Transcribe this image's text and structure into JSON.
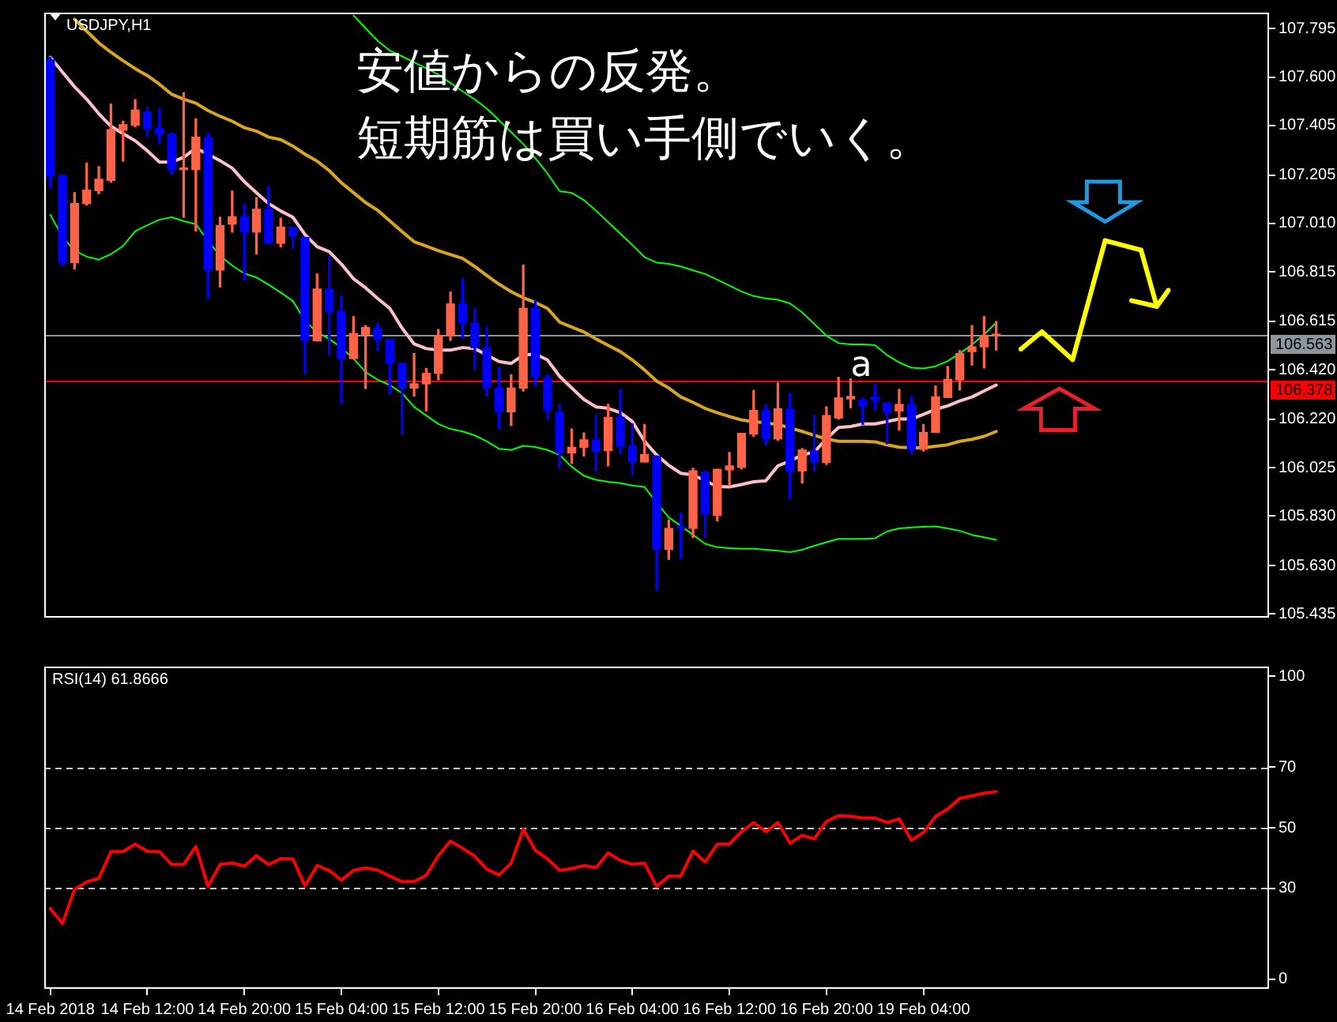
{
  "chart_data": [
    {
      "type": "candlestick",
      "title": "USDJPY,H1",
      "categories": [
        null,
        null,
        null,
        null,
        null,
        null,
        null,
        null,
        null,
        null,
        null,
        null,
        null,
        null,
        null,
        null,
        null,
        null,
        null,
        null,
        null,
        null,
        null,
        null,
        null,
        null,
        null,
        null,
        null,
        null,
        null,
        null,
        null,
        null,
        null,
        null,
        null,
        null,
        null,
        null,
        null,
        null,
        null,
        null,
        null,
        null,
        null,
        null,
        null,
        null,
        null,
        null,
        null,
        null,
        null,
        null,
        null,
        null,
        null,
        null,
        null,
        null,
        null,
        null,
        null,
        null,
        null,
        null,
        null,
        null,
        null,
        null,
        null,
        null,
        null,
        null,
        null,
        null,
        null
      ],
      "ohlc": [
        [
          107.67,
          107.68,
          107.154,
          107.203
        ],
        [
          107.203,
          107.203,
          106.84,
          106.852
        ],
        [
          106.852,
          107.134,
          106.826,
          107.09
        ],
        [
          107.09,
          107.253,
          107.084,
          107.144
        ],
        [
          107.142,
          107.239,
          107.13,
          107.188
        ],
        [
          107.184,
          107.491,
          107.176,
          107.388
        ],
        [
          107.386,
          107.422,
          107.261,
          107.408
        ],
        [
          107.406,
          107.509,
          107.4,
          107.467
        ],
        [
          107.46,
          107.479,
          107.362,
          107.392
        ],
        [
          107.394,
          107.473,
          107.332,
          107.37
        ],
        [
          107.37,
          107.376,
          107.207,
          107.227
        ],
        [
          107.227,
          107.537,
          107.035,
          107.227
        ],
        [
          107.227,
          107.432,
          106.979,
          107.358
        ],
        [
          107.358,
          107.376,
          106.707,
          106.822
        ],
        [
          106.822,
          107.035,
          106.753,
          107.001
        ],
        [
          107.007,
          107.14,
          106.975,
          107.037
        ],
        [
          107.037,
          107.086,
          106.781,
          106.975
        ],
        [
          106.975,
          107.114,
          106.886,
          107.067
        ],
        [
          107.067,
          107.158,
          106.93,
          106.93
        ],
        [
          106.93,
          107.031,
          106.916,
          106.995
        ],
        [
          106.995,
          106.995,
          106.91,
          106.959
        ],
        [
          106.953,
          106.953,
          106.403,
          106.536
        ],
        [
          106.536,
          106.806,
          106.536,
          106.745
        ],
        [
          106.745,
          106.876,
          106.479,
          106.655
        ],
        [
          106.655,
          106.717,
          106.284,
          106.465
        ],
        [
          106.465,
          106.634,
          106.465,
          106.566
        ],
        [
          106.56,
          106.598,
          106.344,
          106.59
        ],
        [
          106.588,
          106.608,
          106.497,
          106.542
        ],
        [
          106.542,
          106.542,
          106.32,
          106.447
        ],
        [
          106.447,
          106.447,
          106.159,
          106.346
        ],
        [
          106.346,
          106.485,
          106.314,
          106.363
        ],
        [
          106.363,
          106.425,
          106.254,
          106.405
        ],
        [
          106.405,
          106.582,
          106.379,
          106.558
        ],
        [
          106.558,
          106.733,
          106.538,
          106.685
        ],
        [
          106.685,
          106.786,
          106.548,
          106.608
        ],
        [
          106.608,
          106.667,
          106.421,
          106.509
        ],
        [
          106.507,
          106.59,
          106.314,
          106.346
        ],
        [
          106.346,
          106.429,
          106.183,
          106.25
        ],
        [
          106.25,
          106.399,
          106.195,
          106.346
        ],
        [
          106.346,
          106.842,
          106.334,
          106.667
        ],
        [
          106.667,
          106.697,
          106.356,
          106.393
        ],
        [
          106.387,
          106.399,
          106.221,
          106.256
        ],
        [
          106.25,
          106.282,
          106.022,
          106.084
        ],
        [
          106.084,
          106.181,
          106.042,
          106.107
        ],
        [
          106.107,
          106.165,
          106.072,
          106.137
        ],
        [
          106.137,
          106.239,
          106.012,
          106.09
        ],
        [
          106.094,
          106.28,
          106.032,
          106.227
        ],
        [
          106.227,
          106.342,
          106.082,
          106.111
        ],
        [
          106.113,
          106.201,
          105.998,
          106.048
        ],
        [
          106.048,
          106.199,
          106.048,
          106.078
        ],
        [
          106.072,
          106.072,
          105.532,
          105.695
        ],
        [
          105.695,
          105.814,
          105.655,
          105.78
        ],
        [
          105.784,
          105.843,
          105.659,
          105.78
        ],
        [
          105.78,
          106.022,
          105.744,
          106.012
        ],
        [
          106.006,
          106.01,
          105.744,
          105.839
        ],
        [
          105.833,
          106.018,
          105.81,
          106.018
        ],
        [
          106.016,
          106.086,
          105.953,
          106.032
        ],
        [
          106.026,
          106.163,
          106.02,
          106.163
        ],
        [
          106.161,
          106.336,
          106.151,
          106.256
        ],
        [
          106.256,
          106.28,
          106.117,
          106.141
        ],
        [
          106.141,
          106.366,
          106.135,
          106.262
        ],
        [
          106.262,
          106.324,
          105.903,
          106.012
        ],
        [
          106.012,
          106.102,
          105.963,
          106.096
        ],
        [
          106.092,
          106.236,
          106.012,
          106.048
        ],
        [
          106.046,
          106.27,
          106.038,
          106.235
        ],
        [
          106.225,
          106.389,
          106.221,
          106.306
        ],
        [
          106.302,
          106.383,
          106.266,
          106.312
        ],
        [
          106.298,
          106.306,
          106.199,
          106.274
        ],
        [
          106.31,
          106.36,
          106.258,
          106.298
        ],
        [
          106.286,
          106.286,
          106.121,
          106.248
        ],
        [
          106.254,
          106.34,
          106.177,
          106.28
        ],
        [
          106.28,
          106.31,
          106.082,
          106.099
        ],
        [
          106.099,
          106.199,
          106.092,
          106.167
        ],
        [
          106.167,
          106.354,
          106.167,
          106.31
        ],
        [
          106.308,
          106.433,
          106.308,
          106.381
        ],
        [
          106.379,
          106.497,
          106.338,
          106.485
        ],
        [
          106.493,
          106.598,
          106.439,
          106.512
        ],
        [
          106.512,
          106.634,
          106.427,
          106.556
        ],
        [
          106.556,
          106.614,
          106.499,
          106.563
        ]
      ],
      "colors": [
        "#0000ff",
        "#0000ff",
        "#ff6347",
        "#ff6347",
        "#ff6347",
        "#ff6347",
        "#ff6347",
        "#ff6347",
        "#0000ff",
        "#0000ff",
        "#0000ff",
        "#ff6347",
        "#ff6347",
        "#0000ff",
        "#ff6347",
        "#ff6347",
        "#0000ff",
        "#ff6347",
        "#0000ff",
        "#ff6347",
        "#0000ff",
        "#0000ff",
        "#ff6347",
        "#0000ff",
        "#0000ff",
        "#ff6347",
        "#ff6347",
        "#0000ff",
        "#0000ff",
        "#0000ff",
        "#ff6347",
        "#ff6347",
        "#ff6347",
        "#ff6347",
        "#0000ff",
        "#0000ff",
        "#0000ff",
        "#0000ff",
        "#ff6347",
        "#ff6347",
        "#0000ff",
        "#0000ff",
        "#0000ff",
        "#ff6347",
        "#ff6347",
        "#0000ff",
        "#ff6347",
        "#0000ff",
        "#0000ff",
        "#ff6347",
        "#0000ff",
        "#ff6347",
        "#0000ff",
        "#ff6347",
        "#0000ff",
        "#ff6347",
        "#ff6347",
        "#ff6347",
        "#ff6347",
        "#0000ff",
        "#ff6347",
        "#0000ff",
        "#ff6347",
        "#0000ff",
        "#ff6347",
        "#ff6347",
        "#ff6347",
        "#0000ff",
        "#0000ff",
        "#0000ff",
        "#ff6347",
        "#0000ff",
        "#ff6347",
        "#ff6347",
        "#ff6347",
        "#ff6347",
        "#ff6347",
        "#ff6347",
        "#ff6347"
      ],
      "series": [
        {
          "type": "line",
          "color": "#ffc0cb",
          "values": [
            107.68,
            107.62,
            107.561,
            107.511,
            107.452,
            107.402,
            107.372,
            107.343,
            107.303,
            107.257,
            107.257,
            107.277,
            107.313,
            107.289,
            107.263,
            107.233,
            107.178,
            107.134,
            107.09,
            107.06,
            107.035,
            106.965,
            106.916,
            106.896,
            106.846,
            106.787,
            106.75,
            106.707,
            106.667,
            106.588,
            106.524,
            106.505,
            106.499,
            106.499,
            106.509,
            106.505,
            106.479,
            106.453,
            106.445,
            106.479,
            106.483,
            106.459,
            106.393,
            106.346,
            106.3,
            106.27,
            106.264,
            106.247,
            106.211,
            106.131,
            106.076,
            106.034,
            106.002,
            105.996,
            105.972,
            105.949,
            105.947,
            105.957,
            105.968,
            105.972,
            106.032,
            106.052,
            106.076,
            106.088,
            106.141,
            106.187,
            106.191,
            106.201,
            106.201,
            106.211,
            106.221,
            106.221,
            106.24,
            106.26,
            106.274,
            106.294,
            106.31,
            106.334,
            106.358
          ]
        },
        {
          "type": "line",
          "color": "#daa520",
          "values": [
            null,
            null,
            107.833,
            107.785,
            107.738,
            107.7,
            107.666,
            107.634,
            107.606,
            107.571,
            107.531,
            107.511,
            107.495,
            107.465,
            107.442,
            107.422,
            107.396,
            107.382,
            107.358,
            107.348,
            107.322,
            107.289,
            107.261,
            107.223,
            107.174,
            107.134,
            107.094,
            107.063,
            107.02,
            106.977,
            106.936,
            106.918,
            106.9,
            106.884,
            106.869,
            106.836,
            106.8,
            106.765,
            106.735,
            106.71,
            106.691,
            106.667,
            106.612,
            106.592,
            106.572,
            106.544,
            106.518,
            106.493,
            106.459,
            106.419,
            106.374,
            106.346,
            106.31,
            106.288,
            106.264,
            106.246,
            106.231,
            106.217,
            106.211,
            106.205,
            106.199,
            106.185,
            106.171,
            106.155,
            106.141,
            106.131,
            106.131,
            106.131,
            106.129,
            106.117,
            106.107,
            106.105,
            106.105,
            106.111,
            106.117,
            106.131,
            106.139,
            106.151,
            106.171
          ]
        },
        {
          "type": "line",
          "color": "#00ff00",
          "values": [
            null,
            null,
            null,
            null,
            null,
            null,
            null,
            null,
            null,
            null,
            null,
            null,
            null,
            null,
            null,
            null,
            null,
            null,
            null,
            null,
            null,
            null,
            null,
            null,
            null,
            107.849,
            107.797,
            107.746,
            107.707,
            107.684,
            107.66,
            107.636,
            107.61,
            107.576,
            107.543,
            107.51,
            107.473,
            107.426,
            107.378,
            107.33,
            107.273,
            107.211,
            107.14,
            107.133,
            107.104,
            107.061,
            107.015,
            106.969,
            106.923,
            106.874,
            106.852,
            106.847,
            106.836,
            106.821,
            106.806,
            106.783,
            106.759,
            106.735,
            106.717,
            106.708,
            106.702,
            106.687,
            106.651,
            106.604,
            106.557,
            106.527,
            106.522,
            106.522,
            106.519,
            106.479,
            106.449,
            106.428,
            106.425,
            106.434,
            106.455,
            106.485,
            106.521,
            106.562,
            106.61
          ]
        },
        {
          "type": "line",
          "color": "#00ff00",
          "values": [
            107.045,
            106.955,
            106.9,
            106.876,
            106.864,
            106.886,
            106.919,
            106.979,
            107.003,
            107.025,
            107.035,
            107.019,
            107.007,
            106.939,
            106.88,
            106.84,
            106.808,
            106.792,
            106.763,
            106.731,
            106.697,
            106.618,
            106.57,
            106.544,
            106.509,
            106.465,
            106.41,
            106.379,
            106.358,
            106.326,
            106.27,
            106.235,
            106.201,
            106.181,
            106.171,
            106.155,
            106.131,
            106.101,
            106.096,
            106.113,
            106.108,
            106.096,
            106.076,
            106.028,
            105.992,
            105.976,
            105.968,
            105.962,
            105.953,
            105.947,
            105.883,
            105.824,
            105.79,
            105.754,
            105.718,
            105.704,
            105.7,
            105.698,
            105.698,
            105.694,
            105.69,
            105.684,
            105.694,
            105.71,
            105.724,
            105.738,
            105.738,
            105.738,
            105.74,
            105.768,
            105.78,
            105.784,
            105.786,
            105.788,
            105.78,
            105.77,
            105.754,
            105.744,
            105.734
          ]
        }
      ],
      "ylim": [
        105.42,
        107.86
      ],
      "yticks": [
        105.435,
        {
          "value": 105.63,
          "label": "105.630"
        },
        {
          "value": 105.83,
          "label": "105.830"
        },
        106.025,
        {
          "value": 106.22,
          "label": "106.220"
        },
        {
          "value": 106.42,
          "label": "106.420"
        },
        106.615,
        106.815,
        {
          "value": 107.01,
          "label": "107.010"
        },
        107.205,
        107.405,
        {
          "value": 107.6,
          "label": "107.600"
        },
        107.795
      ],
      "tick_labels": "y",
      "ref_lines": [
        {
          "axis": "y",
          "value": 106.563,
          "label": "106.563",
          "color": "#8c969c"
        },
        {
          "axis": "y",
          "value": 106.378,
          "label": "106.378",
          "color": "#ff0000"
        }
      ],
      "annotations": [
        "安値からの反発。",
        "短期筋は買い手側でいく。",
        "a"
      ]
    },
    {
      "type": "line",
      "title": "RSI(14) 61.8666",
      "categories": [
        "14 Feb 2018",
        null,
        null,
        null,
        null,
        null,
        null,
        null,
        "14 Feb 12:00",
        null,
        null,
        null,
        null,
        null,
        null,
        null,
        "14 Feb 20:00",
        null,
        null,
        null,
        null,
        null,
        null,
        null,
        "15 Feb 04:00",
        null,
        null,
        null,
        null,
        null,
        null,
        null,
        "15 Feb 12:00",
        null,
        null,
        null,
        null,
        null,
        null,
        null,
        "15 Feb 20:00",
        null,
        null,
        null,
        null,
        null,
        null,
        null,
        "16 Feb 04:00",
        null,
        null,
        null,
        null,
        null,
        null,
        null,
        "16 Feb 12:00",
        null,
        null,
        null,
        null,
        null,
        null,
        null,
        "16 Feb 20:00",
        null,
        null,
        null,
        null,
        null,
        null,
        null,
        "19 Feb 04:00",
        null,
        null,
        null,
        null,
        null,
        null
      ],
      "series": [
        {
          "color": "#ff0000",
          "values": [
            23.3,
            18.4,
            29.7,
            32.1,
            33.3,
            42.1,
            42.1,
            44.6,
            42.2,
            42.1,
            37.9,
            37.9,
            43.8,
            30.6,
            37.9,
            38.4,
            37.3,
            40.8,
            37.8,
            39.8,
            39.7,
            30.8,
            37.5,
            35.9,
            32.7,
            35.9,
            36.7,
            36.0,
            34.0,
            32.2,
            32.2,
            34.3,
            40.8,
            45.6,
            43.2,
            40.6,
            36.3,
            34.4,
            38.3,
            49.5,
            42.5,
            39.7,
            35.9,
            36.5,
            37.5,
            36.8,
            41.7,
            39.2,
            37.9,
            38.3,
            30.6,
            34.0,
            34.1,
            42.3,
            38.7,
            44.6,
            44.6,
            48.7,
            51.7,
            48.7,
            51.7,
            44.9,
            47.5,
            46.3,
            52.1,
            54.0,
            53.8,
            53.2,
            53.2,
            51.7,
            52.9,
            45.9,
            48.4,
            53.7,
            56.2,
            59.7,
            60.5,
            61.4,
            61.9
          ]
        }
      ],
      "ylim": [
        -3.2,
        103.2
      ],
      "yticks": [
        0,
        30,
        50,
        70,
        100
      ],
      "ref_lines": [
        {
          "axis": "y",
          "value": 70,
          "color": "#c8c8c8",
          "line_style": "dashed"
        },
        {
          "axis": "y",
          "value": 50,
          "color": "#c8c8c8",
          "line_style": "dashed"
        },
        {
          "axis": "y",
          "value": 30,
          "color": "#c8c8c8",
          "line_style": "dashed"
        }
      ]
    }
  ]
}
